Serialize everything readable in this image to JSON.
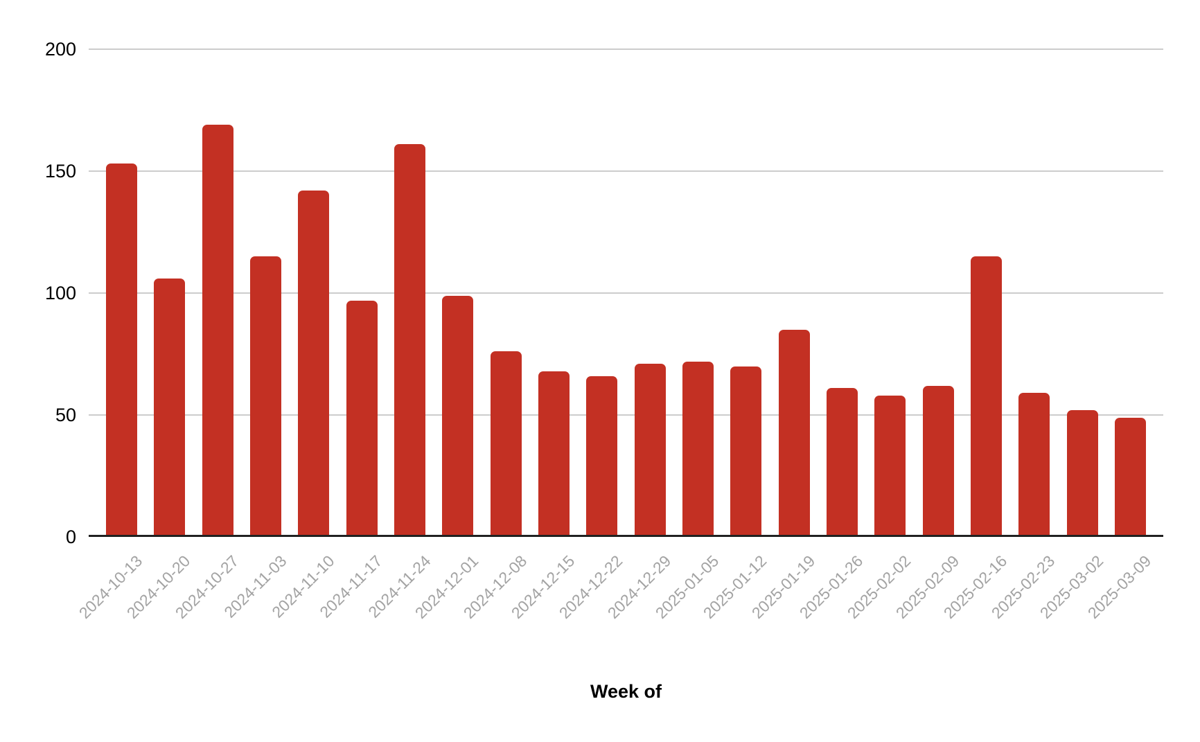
{
  "chart_data": {
    "type": "bar",
    "xlabel": "Week of",
    "categories": [
      "2024-10-13",
      "2024-10-20",
      "2024-10-27",
      "2024-11-03",
      "2024-11-10",
      "2024-11-17",
      "2024-11-24",
      "2024-12-01",
      "2024-12-08",
      "2024-12-15",
      "2024-12-22",
      "2024-12-29",
      "2025-01-05",
      "2025-01-12",
      "2025-01-19",
      "2025-01-26",
      "2025-02-02",
      "2025-02-09",
      "2025-02-16",
      "2025-02-23",
      "2025-03-02",
      "2025-03-09"
    ],
    "values": [
      153,
      106,
      169,
      115,
      142,
      97,
      161,
      99,
      76,
      68,
      66,
      71,
      72,
      70,
      85,
      61,
      58,
      62,
      115,
      59,
      52,
      49
    ],
    "ylim": [
      0,
      200
    ],
    "yticks": [
      0,
      50,
      100,
      150,
      200
    ],
    "grid": true,
    "legend": "none",
    "colors": {
      "bar": "#c33023",
      "axis_line": "#212121",
      "gridline": "#cccccc",
      "x_tick_label": "#a3a3a3",
      "y_tick_label": "#000000",
      "axis_title": "#000000"
    }
  }
}
